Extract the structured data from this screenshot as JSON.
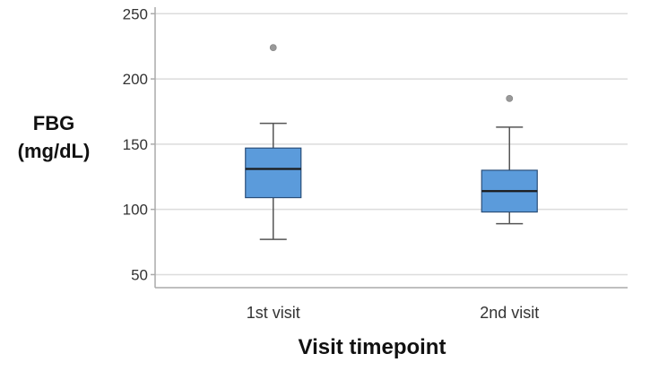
{
  "chart_data": {
    "type": "box",
    "title": "",
    "ylabel_line1": "FBG",
    "ylabel_line2": "(mg/dL)",
    "xlabel": "Visit timepoint",
    "ylim": [
      40,
      255
    ],
    "yticks": [
      50,
      100,
      150,
      200,
      250
    ],
    "grid": "horizontal",
    "categories": [
      "1st visit",
      "2nd visit"
    ],
    "boxes": [
      {
        "category": "1st visit",
        "min": 77,
        "q1": 109,
        "median": 131,
        "q3": 147,
        "max": 166,
        "outliers": [
          224
        ]
      },
      {
        "category": "2nd visit",
        "min": 89,
        "q1": 98,
        "median": 114,
        "q3": 130,
        "max": 163,
        "outliers": [
          185
        ]
      }
    ],
    "colors": {
      "box_fill": "#5b9bdb",
      "box_stroke": "#2a4f7a",
      "whisker": "#555555",
      "outlier": "#999999",
      "grid": "#dcdcdc",
      "axis": "#aaaaaa"
    }
  }
}
